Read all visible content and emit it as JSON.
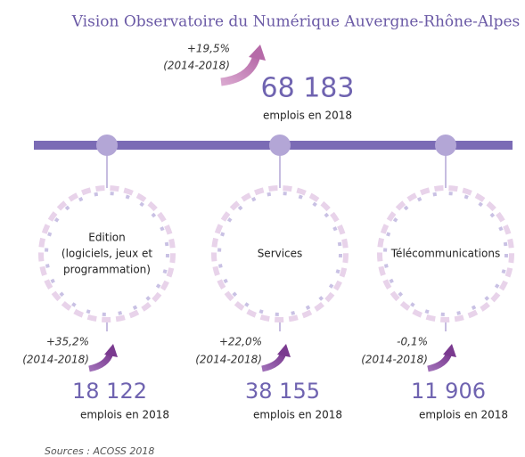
{
  "header": {
    "title": "Vision Observatoire du Numérique Auvergne-Rhône-Alpes"
  },
  "total": {
    "growth": "+19,5%",
    "period": "(2014-2018)",
    "value": "68 183",
    "label": "emplois en 2018"
  },
  "sectors": [
    {
      "name_lines": [
        "Edition",
        "(logiciels, jeux et",
        "programmation)"
      ],
      "growth": "+35,2%",
      "period": "(2014-2018)",
      "value": "18 122",
      "label": "emplois en 2018"
    },
    {
      "name_lines": [
        "Services"
      ],
      "growth": "+22,0%",
      "period": "(2014-2018)",
      "value": "38 155",
      "label": "emplois en 2018"
    },
    {
      "name_lines": [
        "Télécommunications"
      ],
      "growth": "-0,1%",
      "period": "(2014-2018)",
      "value": "11 906",
      "label": "emplois en 2018"
    }
  ],
  "footer": {
    "source": "Sources : ACOSS 2018"
  }
}
